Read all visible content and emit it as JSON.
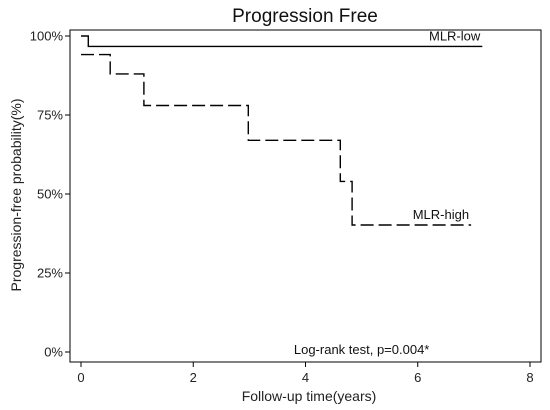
{
  "chart_data": {
    "type": "line",
    "title": "Progression Free",
    "xlabel": "Follow-up time(years)",
    "ylabel": "Progression-free probability(%)",
    "xlim": [
      0,
      8
    ],
    "ylim": [
      0,
      100
    ],
    "xticks": [
      0,
      2,
      4,
      6,
      8
    ],
    "yticks": [
      0,
      25,
      50,
      75,
      100
    ],
    "ytick_labels": [
      "0%",
      "25%",
      "50%",
      "75%",
      "100%"
    ],
    "grid": false,
    "legend": "none",
    "series": [
      {
        "name": "MLR-low",
        "style": "solid",
        "color": "#000000",
        "x": [
          0,
          0.13,
          0.13,
          7.15
        ],
        "y": [
          100,
          100,
          96.7,
          96.7
        ]
      },
      {
        "name": "MLR-high",
        "style": "dashed",
        "color": "#000000",
        "x": [
          0,
          0.52,
          0.52,
          1.12,
          1.12,
          2.98,
          2.98,
          4.62,
          4.62,
          4.83,
          4.83,
          6.95
        ],
        "y": [
          94.1,
          94.1,
          88.0,
          88.0,
          78.0,
          78.0,
          67.0,
          67.0,
          54.0,
          54.0,
          40.2,
          40.2
        ]
      }
    ],
    "annotations": [
      {
        "text": "Log-rank test, p=0.004*",
        "x": 5.0,
        "y": 1
      }
    ]
  }
}
